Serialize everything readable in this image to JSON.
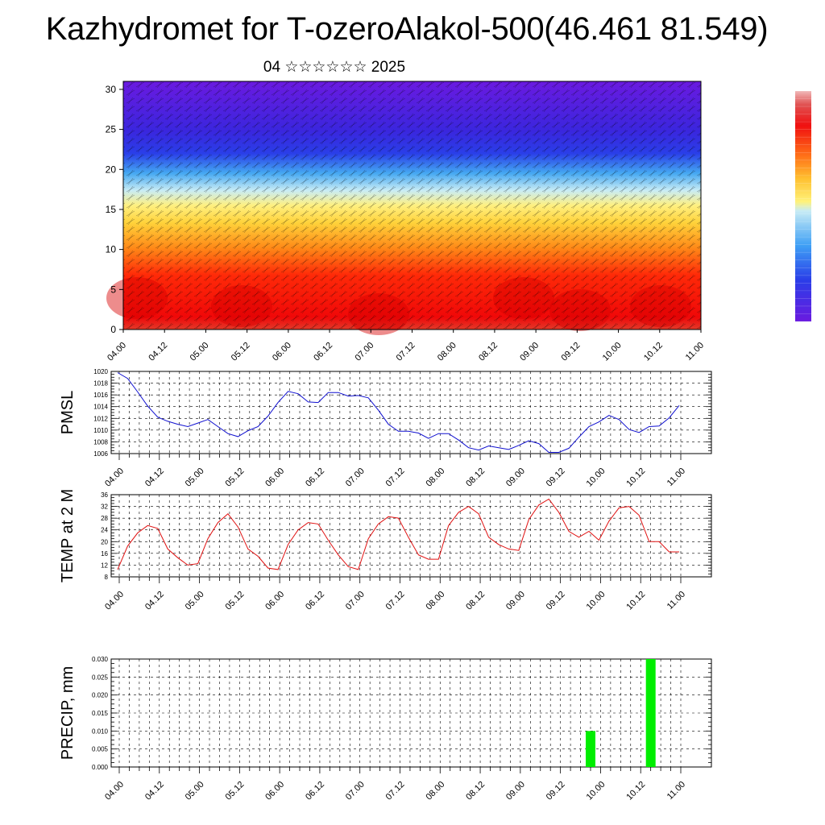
{
  "title": "Kazhydromet for T-ozeroAlakol-500(46.461 81.549)",
  "subtitle": "04 ☆☆☆☆☆☆ 2025",
  "chart_data": [
    {
      "type": "heatmap",
      "title": "",
      "xlabel": "",
      "ylabel": "",
      "x_ticks": [
        "04.00",
        "04.12",
        "05.00",
        "05.12",
        "06.00",
        "06.12",
        "07.00",
        "07.12",
        "08.00",
        "08.12",
        "09.00",
        "09.12",
        "10.00",
        "10.12",
        "11.00"
      ],
      "y_ticks": [
        0,
        5,
        10,
        15,
        20,
        25,
        30
      ],
      "ylim": [
        0,
        31
      ],
      "note_fields": "filled contours with wind barbs",
      "colorbar": true,
      "palette": [
        "#6a1ae0",
        "#3b20e0",
        "#2f5cf0",
        "#3fa0f5",
        "#bfe6f5",
        "#fff27a",
        "#ffd040",
        "#ffa020",
        "#ff6010",
        "#f01010",
        "#e00000",
        "#e06a6a"
      ]
    },
    {
      "type": "line",
      "ylabel": "PMSL",
      "ylim": [
        1006,
        1020
      ],
      "y_ticks": [
        1006,
        1008,
        1010,
        1012,
        1014,
        1016,
        1018,
        1020
      ],
      "x_ticks": [
        "04.00",
        "04.12",
        "05.00",
        "05.12",
        "06.00",
        "06.12",
        "07.00",
        "07.12",
        "08.00",
        "08.12",
        "09.00",
        "09.12",
        "10.00",
        "10.12",
        "11.00"
      ],
      "color": "#1010d0",
      "values": [
        1019.8,
        1018.8,
        1016.5,
        1014.1,
        1012.2,
        1011.5,
        1011.0,
        1010.6,
        1011.2,
        1011.8,
        1010.6,
        1009.4,
        1008.9,
        1009.9,
        1010.6,
        1012.4,
        1014.7,
        1016.6,
        1016.2,
        1014.8,
        1014.7,
        1016.4,
        1016.4,
        1015.8,
        1015.9,
        1015.5,
        1013.4,
        1011.0,
        1009.8,
        1009.8,
        1009.5,
        1008.6,
        1009.4,
        1009.4,
        1008.3,
        1007.0,
        1006.6,
        1007.3,
        1007.0,
        1006.7,
        1007.4,
        1008.2,
        1007.7,
        1006.2,
        1006.2,
        1006.9,
        1008.8,
        1010.6,
        1011.4,
        1012.5,
        1011.8,
        1010.1,
        1009.6,
        1010.6,
        1010.7,
        1012.1,
        1014.2
      ]
    },
    {
      "type": "line",
      "ylabel": "TEMP at 2 M",
      "ylim": [
        8,
        36
      ],
      "y_ticks": [
        8,
        12,
        16,
        20,
        24,
        28,
        32,
        36
      ],
      "x_ticks": [
        "04.00",
        "04.12",
        "05.00",
        "05.12",
        "06.00",
        "06.12",
        "07.00",
        "07.12",
        "08.00",
        "08.12",
        "09.00",
        "09.12",
        "10.00",
        "10.12",
        "11.00"
      ],
      "color": "#e01010",
      "values": [
        10.5,
        18.5,
        23.0,
        25.5,
        24.5,
        17.5,
        14.5,
        12.0,
        12.5,
        21.0,
        26.5,
        29.5,
        25.0,
        17.5,
        15.0,
        11.0,
        10.5,
        19.0,
        24.0,
        26.5,
        26.0,
        20.5,
        15.5,
        11.5,
        10.5,
        21.0,
        26.0,
        28.5,
        28.0,
        21.5,
        15.5,
        14.0,
        14.0,
        25.5,
        30.0,
        32.0,
        29.5,
        21.5,
        19.0,
        17.5,
        17.0,
        27.5,
        32.5,
        34.5,
        30.0,
        23.5,
        21.5,
        23.5,
        20.5,
        27.0,
        31.5,
        32.0,
        29.0,
        20.0,
        20.0,
        16.5,
        16.5
      ]
    },
    {
      "type": "bar",
      "ylabel": "PRECIP, mm",
      "ylim": [
        0,
        0.03
      ],
      "y_ticks": [
        "0.000",
        "0.005",
        "0.010",
        "0.015",
        "0.020",
        "0.025",
        "0.030"
      ],
      "x_ticks": [
        "04.00",
        "04.12",
        "05.00",
        "05.12",
        "06.00",
        "06.12",
        "07.00",
        "07.12",
        "08.00",
        "08.12",
        "09.00",
        "09.12",
        "10.00",
        "10.12",
        "11.00"
      ],
      "color": "#00ee00",
      "bars": [
        {
          "x": "09.21",
          "value": 0.01
        },
        {
          "x": "10.15",
          "value": 0.03
        }
      ]
    }
  ]
}
